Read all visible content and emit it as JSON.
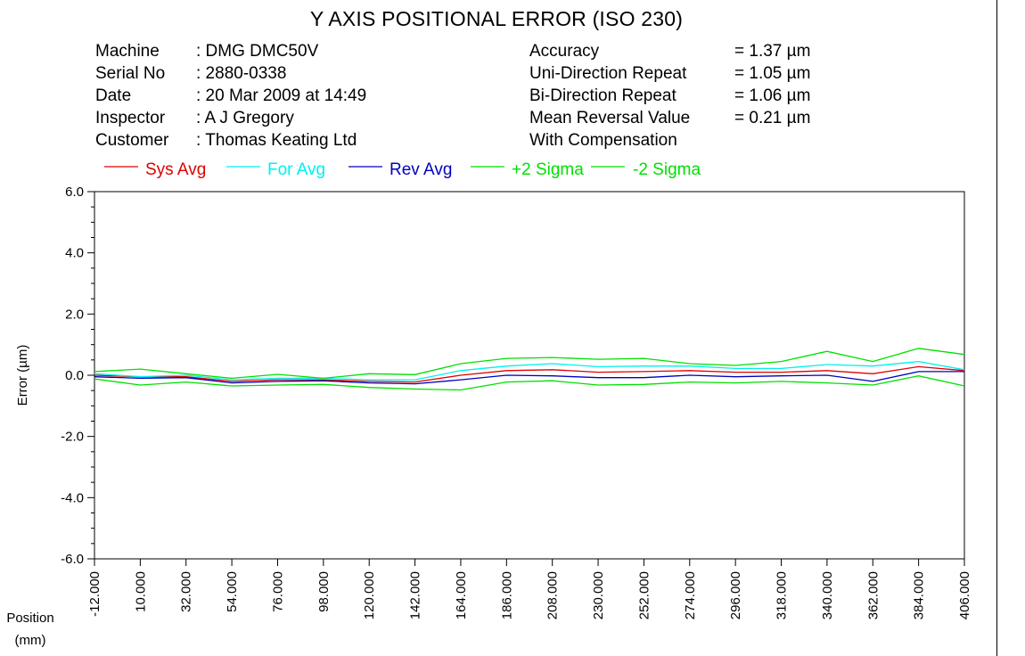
{
  "title": "Y AXIS POSITIONAL ERROR (ISO 230)",
  "info_left": [
    {
      "label": "Machine",
      "value": ": DMG DMC50V"
    },
    {
      "label": "Serial No",
      "value": ": 2880-0338"
    },
    {
      "label": "Date",
      "value": ": 20 Mar 2009 at 14:49"
    },
    {
      "label": "Inspector",
      "value": ": A J Gregory"
    },
    {
      "label": "Customer",
      "value": ": Thomas Keating Ltd"
    }
  ],
  "info_right": [
    {
      "label": "Accuracy",
      "value": "= 1.37 µm"
    },
    {
      "label": "Uni-Direction Repeat",
      "value": "= 1.05 µm"
    },
    {
      "label": "Bi-Direction Repeat",
      "value": "= 1.06 µm"
    },
    {
      "label": "Mean Reversal Value",
      "value": "= 0.21 µm"
    },
    {
      "label": "With Compensation",
      "value": ""
    }
  ],
  "chart_data": {
    "type": "line",
    "title": "Y AXIS POSITIONAL ERROR (ISO 230)",
    "xlabel": "Position (mm)",
    "ylabel": "Error (µm)",
    "ylim": [
      -6.0,
      6.0
    ],
    "yticks": [
      "6.0",
      "4.0",
      "2.0",
      "0.0",
      "-2.0",
      "-4.0",
      "-6.0"
    ],
    "x": [
      -12,
      10,
      32,
      54,
      76,
      98,
      120,
      142,
      164,
      186,
      208,
      230,
      252,
      274,
      296,
      318,
      340,
      362,
      384,
      406
    ],
    "x_tick_labels": [
      "-12.000",
      "10.000",
      "32.000",
      "54.000",
      "76.000",
      "98.000",
      "120.000",
      "142.000",
      "164.000",
      "186.000",
      "208.000",
      "230.000",
      "252.000",
      "274.000",
      "296.000",
      "318.000",
      "340.000",
      "362.000",
      "384.000",
      "406.000"
    ],
    "legend_placement": "top",
    "grid": false,
    "series": [
      {
        "name": "Sys Avg",
        "color": "#e00000",
        "values": [
          0.0,
          -0.05,
          -0.05,
          -0.2,
          -0.15,
          -0.15,
          -0.2,
          -0.22,
          0.0,
          0.15,
          0.18,
          0.1,
          0.12,
          0.15,
          0.1,
          0.1,
          0.15,
          0.05,
          0.28,
          0.15
        ]
      },
      {
        "name": "For Avg",
        "color": "#00f0f0",
        "values": [
          0.05,
          -0.05,
          0.0,
          -0.15,
          -0.1,
          -0.1,
          -0.15,
          -0.15,
          0.15,
          0.3,
          0.38,
          0.28,
          0.3,
          0.3,
          0.22,
          0.22,
          0.35,
          0.3,
          0.45,
          0.18
        ]
      },
      {
        "name": "Rev Avg",
        "color": "#0000c0",
        "values": [
          -0.05,
          -0.1,
          -0.08,
          -0.25,
          -0.2,
          -0.18,
          -0.25,
          -0.28,
          -0.15,
          0.0,
          -0.02,
          -0.08,
          -0.08,
          0.0,
          -0.05,
          -0.02,
          0.0,
          -0.2,
          0.12,
          0.12
        ]
      },
      {
        "name": "+2 Sigma",
        "color": "#00e000",
        "values": [
          0.12,
          0.2,
          0.05,
          -0.1,
          0.03,
          -0.1,
          0.05,
          0.02,
          0.38,
          0.55,
          0.58,
          0.52,
          0.55,
          0.38,
          0.32,
          0.45,
          0.78,
          0.45,
          0.88,
          0.68
        ]
      },
      {
        "name": "-2 Sigma",
        "color": "#00e000",
        "values": [
          -0.12,
          -0.32,
          -0.22,
          -0.35,
          -0.32,
          -0.3,
          -0.4,
          -0.45,
          -0.48,
          -0.22,
          -0.18,
          -0.32,
          -0.3,
          -0.22,
          -0.25,
          -0.2,
          -0.25,
          -0.32,
          -0.02,
          -0.35
        ]
      }
    ]
  }
}
